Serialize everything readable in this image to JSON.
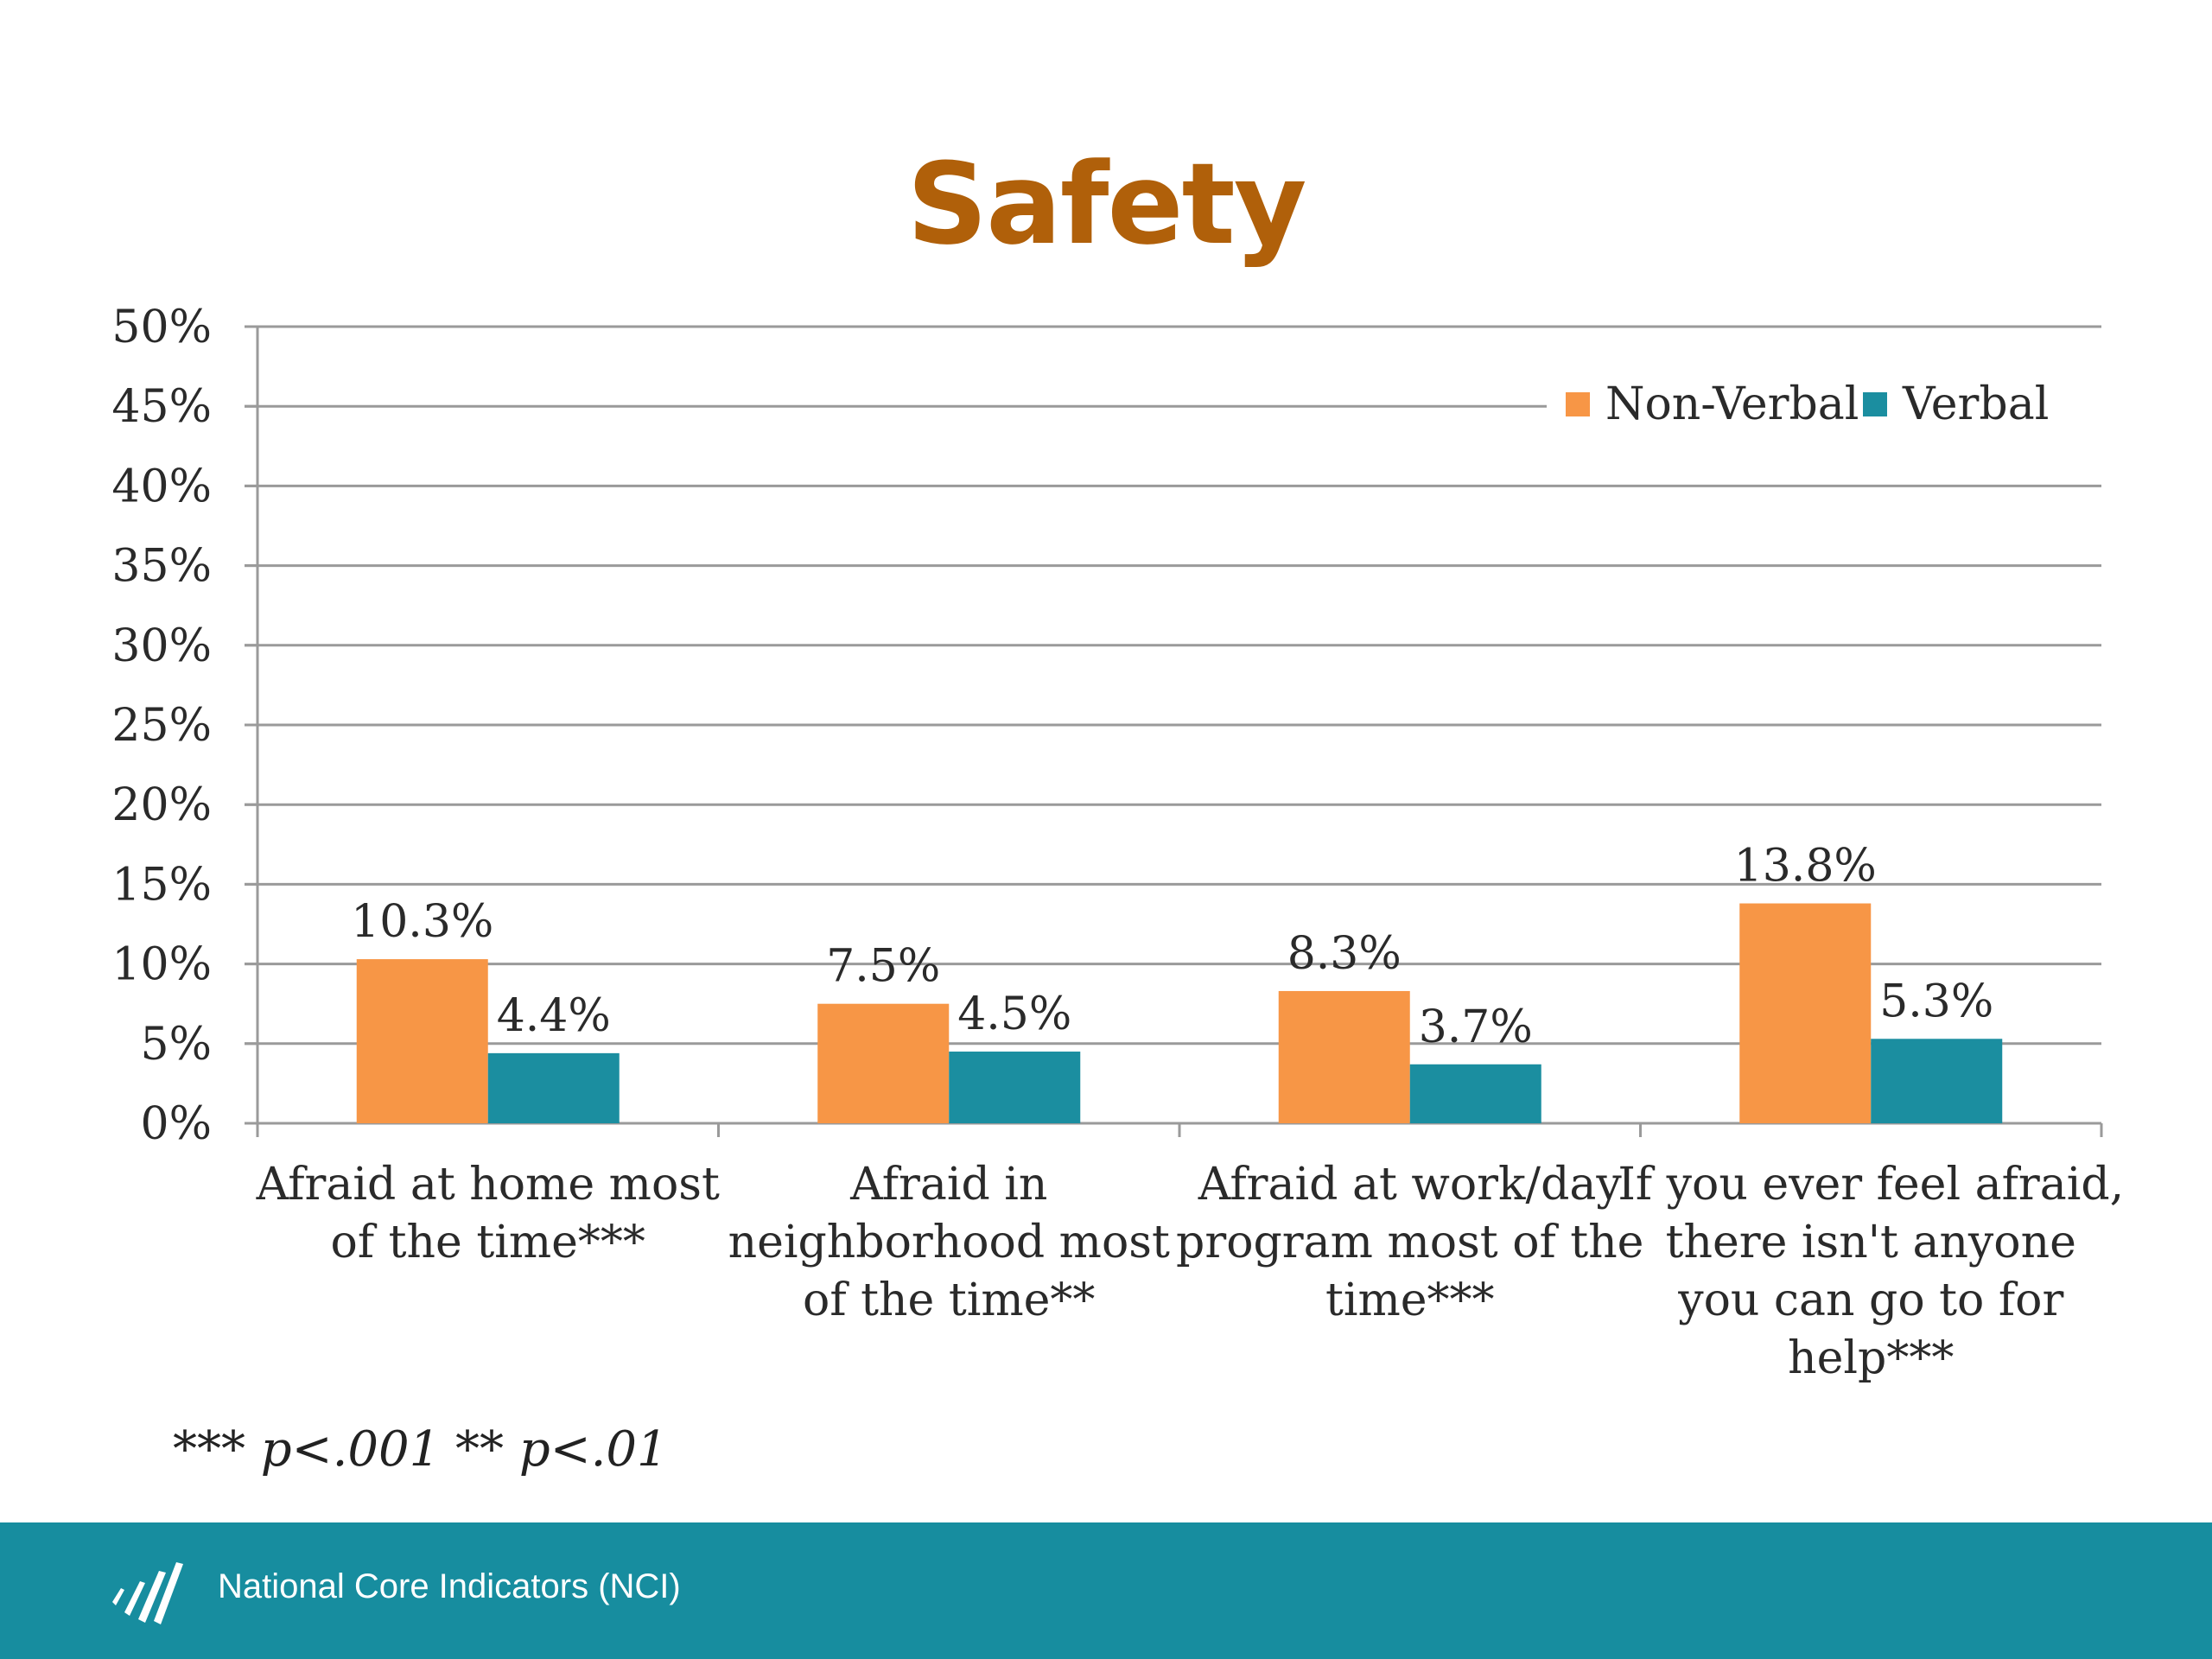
{
  "slide": {
    "title": "Safety",
    "footnote": "*** p<.001 ** p<.01",
    "footer_text": "National Core Indicators (NCI)",
    "footer_color": "#178d9f",
    "title_color": "#b0600a"
  },
  "chart_data": {
    "type": "bar",
    "title": "",
    "xlabel": "",
    "ylabel": "",
    "ylim": [
      0,
      50
    ],
    "y_ticks": [
      "0%",
      "5%",
      "10%",
      "15%",
      "20%",
      "25%",
      "30%",
      "35%",
      "40%",
      "45%",
      "50%"
    ],
    "grid": true,
    "legend_position": "top-right",
    "categories": [
      [
        "Afraid at home most",
        "of the time***"
      ],
      [
        "Afraid in",
        "neighborhood most",
        "of the time**"
      ],
      [
        "Afraid at work/day",
        "program most of the",
        "time***"
      ],
      [
        "If you ever feel afraid,",
        "there isn't anyone",
        "you can go to for",
        "help***"
      ]
    ],
    "series": [
      {
        "name": "Non-Verbal",
        "color": "#f79646",
        "values": [
          10.3,
          7.5,
          8.3,
          13.8
        ],
        "labels": [
          "10.3%",
          "7.5%",
          "8.3%",
          "13.8%"
        ]
      },
      {
        "name": "Verbal",
        "color": "#1b8ea0",
        "values": [
          4.4,
          4.5,
          3.7,
          5.3
        ],
        "labels": [
          "4.4%",
          "4.5%",
          "3.7%",
          "5.3%"
        ]
      }
    ]
  }
}
